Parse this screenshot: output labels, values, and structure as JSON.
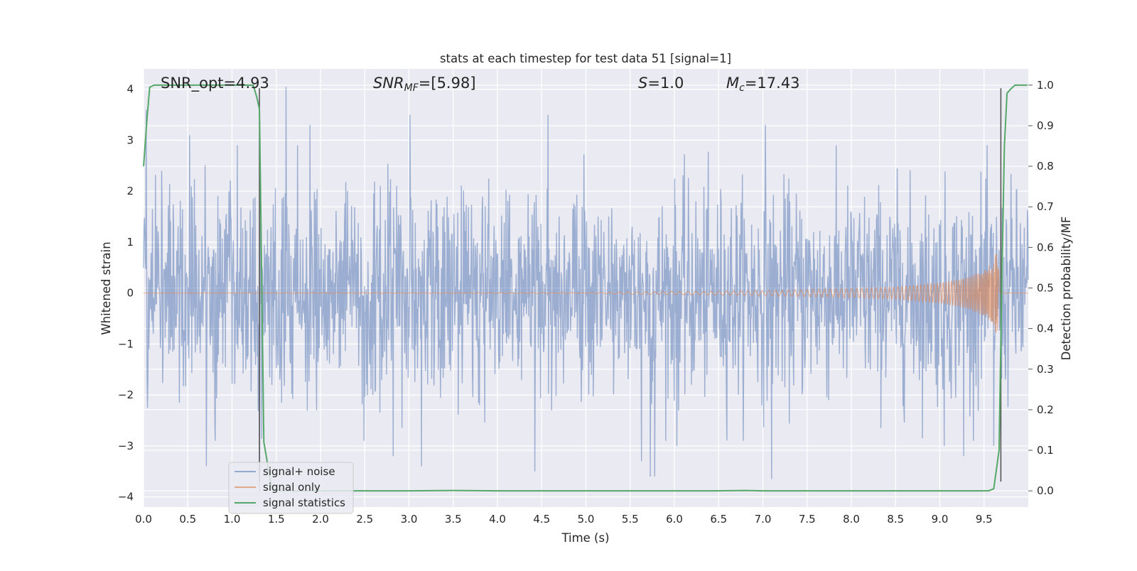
{
  "chart_data": {
    "type": "line",
    "title": "stats at each timestep for test data 51 [signal=1]",
    "xlabel": "Time (s)",
    "ylabel": "Whitened strain",
    "y2label": "Detection probability/MF",
    "xlim": [
      0,
      10
    ],
    "ylim": [
      -4.2,
      4.4
    ],
    "y2lim": [
      -0.04,
      1.04
    ],
    "xticks": [
      "0.0",
      "0.5",
      "1.0",
      "1.5",
      "2.0",
      "2.5",
      "3.0",
      "3.5",
      "4.0",
      "4.5",
      "5.0",
      "5.5",
      "6.0",
      "6.5",
      "7.0",
      "7.5",
      "8.0",
      "8.5",
      "9.0",
      "9.5"
    ],
    "yticks": [
      "−4",
      "−3",
      "−2",
      "−1",
      "0",
      "1",
      "2",
      "3",
      "4"
    ],
    "y2ticks": [
      "0.0",
      "0.1",
      "0.2",
      "0.3",
      "0.4",
      "0.5",
      "0.6",
      "0.7",
      "0.8",
      "0.9",
      "1.0"
    ],
    "grid": true,
    "legend_position": "lower-left",
    "annotations": {
      "snr_opt": "SNR_opt=4.93",
      "snr_mf_label": "SNR",
      "snr_mf_sub": "MF",
      "snr_mf_value": "=[5.98]",
      "s_label": "S",
      "s_value": "=1.0",
      "mc_label": "M",
      "mc_sub": "c",
      "mc_value": "=17.43"
    },
    "vertical_lines_x": [
      1.31,
      9.69
    ],
    "series": [
      {
        "name": "signal+ noise",
        "color": "#4c72b0",
        "axis": "left",
        "description_values": "white gaussian noise, mostly within ±2.5, occasional spikes to ±4",
        "noise_std": 1.0,
        "samples": 2000,
        "extremes": [
          {
            "x": 0.03,
            "y": 3.6
          },
          {
            "x": 0.52,
            "y": 3.1
          },
          {
            "x": 0.71,
            "y": -3.4
          },
          {
            "x": 1.31,
            "y": -3.9
          },
          {
            "x": 1.61,
            "y": 4.05
          },
          {
            "x": 1.88,
            "y": 3.3
          },
          {
            "x": 2.82,
            "y": -3.2
          },
          {
            "x": 3.01,
            "y": 3.5
          },
          {
            "x": 3.14,
            "y": -3.4
          },
          {
            "x": 4.42,
            "y": -3.5
          },
          {
            "x": 4.57,
            "y": 3.5
          },
          {
            "x": 5.63,
            "y": -3.3
          },
          {
            "x": 5.73,
            "y": -3.6
          },
          {
            "x": 5.78,
            "y": -3.6
          },
          {
            "x": 6.03,
            "y": -3.0
          },
          {
            "x": 7.03,
            "y": 3.3
          },
          {
            "x": 7.1,
            "y": -3.65
          },
          {
            "x": 9.05,
            "y": -3.0
          },
          {
            "x": 9.27,
            "y": -3.2
          },
          {
            "x": 9.61,
            "y": -3.0
          }
        ]
      },
      {
        "name": "signal only",
        "color": "#dd8452",
        "axis": "left",
        "description_values": "chirp: near zero, growing amplitude toward merger",
        "envelope": [
          {
            "x": 0.0,
            "amp": 0.0
          },
          {
            "x": 5.0,
            "amp": 0.01
          },
          {
            "x": 6.0,
            "amp": 0.03
          },
          {
            "x": 7.0,
            "amp": 0.05
          },
          {
            "x": 8.0,
            "amp": 0.09
          },
          {
            "x": 8.5,
            "amp": 0.12
          },
          {
            "x": 9.0,
            "amp": 0.2
          },
          {
            "x": 9.3,
            "amp": 0.3
          },
          {
            "x": 9.5,
            "amp": 0.45
          },
          {
            "x": 9.6,
            "amp": 0.6
          },
          {
            "x": 9.65,
            "amp": 0.85
          },
          {
            "x": 9.68,
            "amp": 0.0
          }
        ]
      },
      {
        "name": "signal statistics",
        "color": "#55a868",
        "axis": "right",
        "x": [
          0.0,
          0.04,
          0.07,
          0.12,
          0.5,
          1.0,
          1.24,
          1.28,
          1.31,
          1.36,
          1.45,
          1.55,
          2.0,
          3.0,
          3.5,
          4.0,
          5.0,
          6.0,
          6.5,
          6.8,
          7.0,
          8.0,
          9.0,
          9.55,
          9.61,
          9.67,
          9.7,
          9.73,
          9.76,
          9.8,
          9.85,
          9.9,
          9.99
        ],
        "y": [
          0.8,
          0.92,
          0.995,
          1.0,
          1.0,
          1.0,
          1.0,
          0.97,
          0.94,
          0.12,
          0.005,
          0.0,
          0.0,
          0.0,
          0.001,
          0.0,
          0.0,
          0.0,
          0.0,
          0.001,
          0.0,
          0.0,
          0.0,
          0.0,
          0.005,
          0.1,
          0.5,
          0.85,
          0.98,
          0.99,
          1.0,
          1.0,
          1.0
        ]
      }
    ]
  }
}
